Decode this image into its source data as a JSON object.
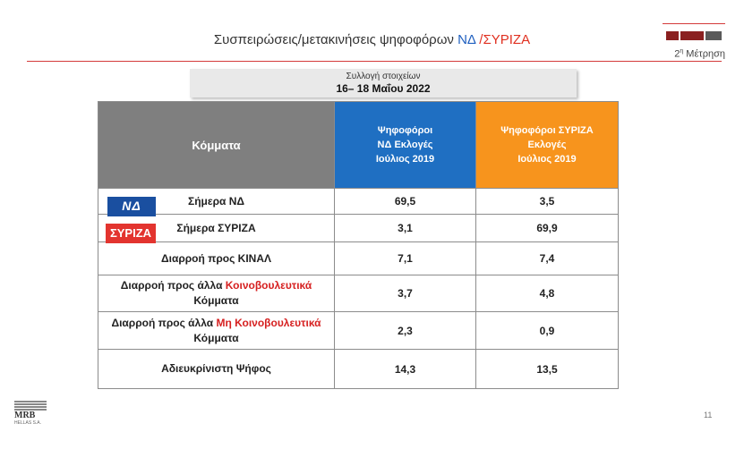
{
  "header": {
    "title_main": "Συσπειρώσεις/μετακινήσεις ψηφοφόρων ",
    "title_nd": "ΝΔ",
    "title_sep": " /",
    "title_syriza": "ΣΥΡΙΖΑ",
    "measurement": "Μέτρηση",
    "measurement_num": "2",
    "measurement_sup": "η"
  },
  "datebox": {
    "label": "Συλλογή στοιχείων",
    "dates": "16– 18 Μαΐου 2022"
  },
  "table": {
    "col0": "Κόμματα",
    "col1": [
      "Ψηφοφόροι",
      "ΝΔ Εκλογές",
      "Ιούλιος 2019"
    ],
    "col2": [
      "Ψηφοφόροι ΣΥΡΙΖΑ",
      "Εκλογές",
      "Ιούλιος 2019"
    ],
    "rows": [
      {
        "label": "Σήμερα ΝΔ",
        "nd": "69,5",
        "syriza": "3,5"
      },
      {
        "label": "Σήμερα ΣΥΡΙΖΑ",
        "nd": "3,1",
        "syriza": "69,9"
      },
      {
        "label": "Διαρροή προς ΚΙΝΑΛ",
        "nd": "7,1",
        "syriza": "7,4"
      },
      {
        "label_a": "Διαρροή προς άλλα ",
        "label_red": "Κοινοβουλευτικά",
        "label_b": "Κόμματα",
        "nd": "3,7",
        "syriza": "4,8"
      },
      {
        "label_a": "Διαρροή προς άλλα ",
        "label_red": "Μη Κοινοβουλευτικά",
        "label_b": "Κόμματα",
        "nd": "2,3",
        "syriza": "0,9"
      },
      {
        "label": "Αδιευκρίνιστη Ψήφος",
        "nd": "14,3",
        "syriza": "13,5"
      }
    ]
  },
  "logos": {
    "nd_text": "ΝΔ",
    "syriza_text": "ΣΥΡΙΖΑ",
    "mrb": "MRB",
    "mrb_sub": "HELLAS S.A."
  },
  "footer": {
    "page": "11"
  },
  "colors": {
    "nd_blue": "#1f6fc2",
    "syriza_orange": "#f7941d",
    "header_gray": "#7f7f7f",
    "accent_red": "#d62020"
  }
}
